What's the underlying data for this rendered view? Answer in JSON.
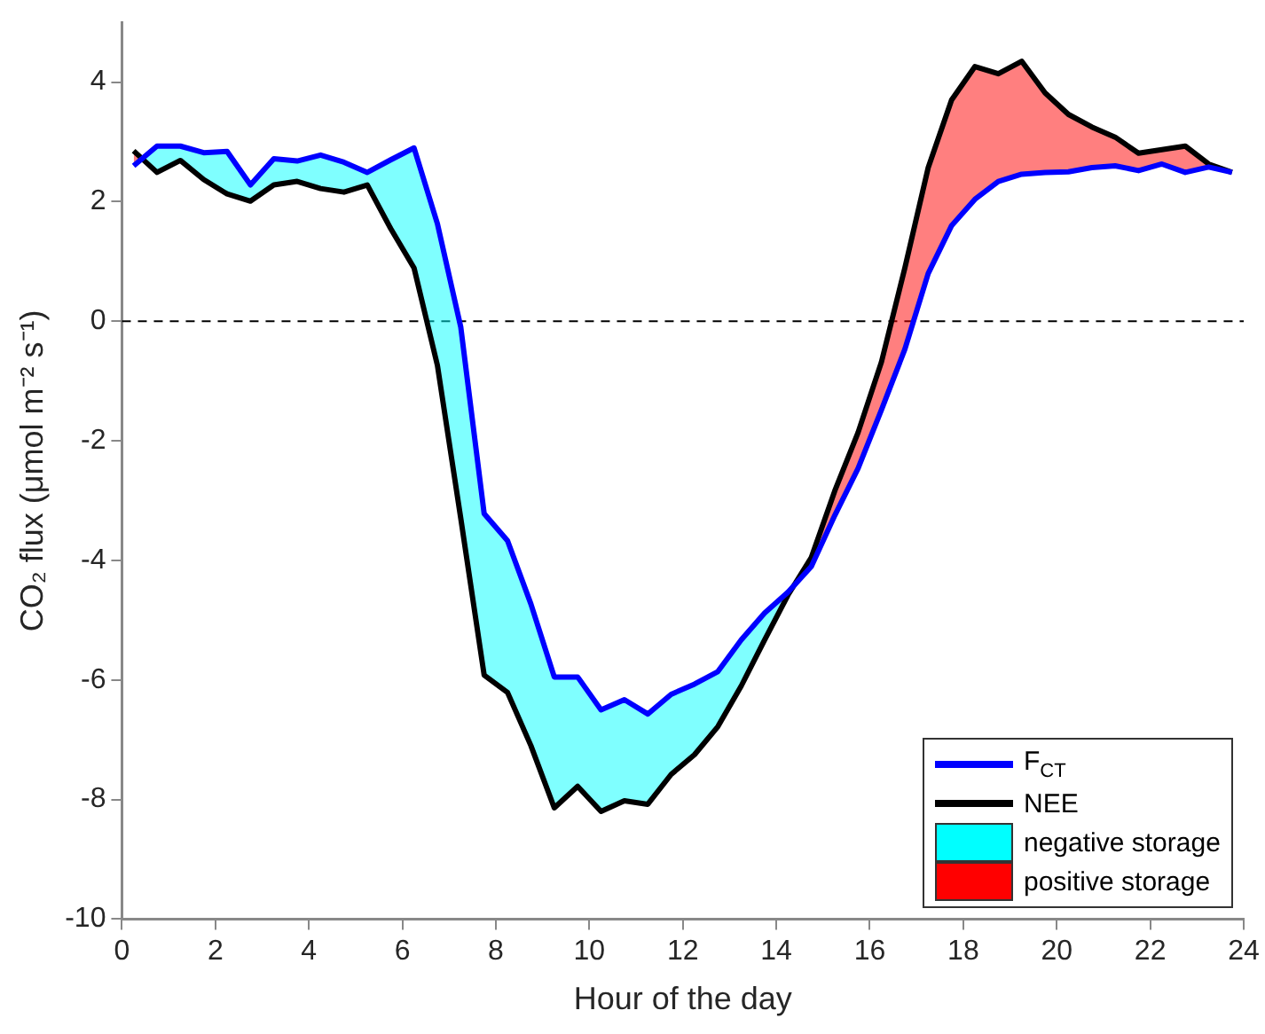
{
  "chart_data": {
    "type": "line",
    "xlabel": "Hour of the day",
    "ylabel": "CO₂ flux (μmol m⁻² s⁻¹)",
    "x": [
      0.25,
      0.75,
      1.25,
      1.75,
      2.25,
      2.75,
      3.25,
      3.75,
      4.25,
      4.75,
      5.25,
      5.75,
      6.25,
      6.75,
      7.25,
      7.75,
      8.25,
      8.75,
      9.25,
      9.75,
      10.25,
      10.75,
      11.25,
      11.75,
      12.25,
      12.75,
      13.25,
      13.75,
      14.25,
      14.75,
      15.25,
      15.75,
      16.25,
      16.75,
      17.25,
      17.75,
      18.25,
      18.75,
      19.25,
      19.75,
      20.25,
      20.75,
      21.25,
      21.75,
      22.25,
      22.75,
      23.25,
      23.75
    ],
    "series": [
      {
        "name": "F$_{CT}$",
        "color": "#0000ff",
        "values": [
          2.6,
          2.93,
          2.93,
          2.82,
          2.84,
          2.28,
          2.72,
          2.68,
          2.78,
          2.66,
          2.49,
          2.7,
          2.9,
          1.63,
          -0.1,
          -3.22,
          -3.67,
          -4.73,
          -5.95,
          -5.95,
          -6.5,
          -6.33,
          -6.57,
          -6.24,
          -6.07,
          -5.86,
          -5.33,
          -4.88,
          -4.53,
          -4.1,
          -3.25,
          -2.46,
          -1.48,
          -0.47,
          0.8,
          1.6,
          2.04,
          2.34,
          2.46,
          2.49,
          2.5,
          2.57,
          2.6,
          2.52,
          2.63,
          2.49,
          2.58,
          2.49
        ]
      },
      {
        "name": "NEE",
        "color": "#000000",
        "values": [
          2.85,
          2.49,
          2.69,
          2.37,
          2.13,
          2.01,
          2.28,
          2.34,
          2.22,
          2.16,
          2.28,
          1.55,
          0.89,
          -0.74,
          -3.3,
          -5.92,
          -6.21,
          -7.1,
          -8.14,
          -7.78,
          -8.2,
          -8.02,
          -8.08,
          -7.58,
          -7.25,
          -6.78,
          -6.1,
          -5.33,
          -4.58,
          -3.95,
          -2.84,
          -1.86,
          -0.68,
          0.89,
          2.57,
          3.7,
          4.26,
          4.14,
          4.35,
          3.82,
          3.46,
          3.25,
          3.08,
          2.81,
          2.87,
          2.93,
          2.63,
          2.49
        ]
      },
      {
        "name": "negative storage",
        "type": "area",
        "color": "#00ffff",
        "values": [
          null,
          null,
          null,
          null,
          null,
          null,
          null,
          null,
          null,
          null,
          null,
          null,
          null,
          null,
          null,
          null,
          null,
          null,
          null,
          null,
          null,
          null,
          null,
          null,
          null,
          null,
          null,
          null,
          null,
          null,
          null,
          null,
          null,
          null,
          null,
          null,
          null,
          null,
          null,
          null,
          null,
          null,
          null,
          null,
          null,
          null,
          null,
          null
        ],
        "lower": [
          2.85,
          2.49,
          2.69,
          2.37,
          2.13,
          2.01,
          2.28,
          2.34,
          2.22,
          2.16,
          2.28,
          1.55,
          0.89,
          -0.74,
          -3.3,
          -5.92,
          -6.21,
          -7.1,
          -8.14,
          -7.78,
          -8.2,
          -8.02,
          -8.08,
          -7.58,
          -7.25,
          -6.78,
          -6.1,
          -5.33,
          -4.58,
          -3.95,
          -2.84,
          -1.86,
          -0.68,
          0.89,
          2.57,
          3.7,
          4.26,
          4.14,
          4.35,
          3.82,
          3.46,
          3.25,
          3.08,
          2.81,
          2.87,
          2.93,
          2.63,
          2.49
        ],
        "upper": [
          2.6,
          2.93,
          2.93,
          2.82,
          2.84,
          2.28,
          2.72,
          2.68,
          2.78,
          2.66,
          2.49,
          2.7,
          2.9,
          1.63,
          -0.1,
          -3.22,
          -3.67,
          -4.73,
          -5.95,
          -5.95,
          -6.5,
          -6.33,
          -6.57,
          -6.24,
          -6.07,
          -5.86,
          -5.33,
          -4.88,
          -4.53,
          -4.1,
          -3.25,
          -2.46,
          -1.48,
          -0.47,
          0.8,
          1.6,
          2.04,
          2.34,
          2.46,
          2.49,
          2.5,
          2.57,
          2.6,
          2.52,
          2.63,
          2.49,
          2.58,
          2.49
        ]
      },
      {
        "name": "positive storage",
        "type": "area",
        "color": "#ff0000",
        "values": [
          null,
          null,
          null,
          null,
          null,
          null,
          null,
          null,
          null,
          null,
          null,
          null,
          null,
          null,
          null,
          null,
          null,
          null,
          null,
          null,
          null,
          null,
          null,
          null,
          null,
          null,
          null,
          null,
          null,
          null,
          null,
          null,
          null,
          null,
          null,
          null,
          null,
          null,
          null,
          null,
          null,
          null,
          null,
          null,
          null,
          null,
          null,
          null
        ],
        "lower": [
          2.6,
          2.93,
          null,
          null,
          null,
          null,
          null,
          null,
          null,
          null,
          null,
          null,
          null,
          null,
          null,
          null,
          null,
          null,
          null,
          null,
          null,
          null,
          null,
          null,
          null,
          null,
          null,
          null,
          -4.53,
          -4.1,
          -3.25,
          -2.46,
          -1.48,
          -0.47,
          0.8,
          1.6,
          2.04,
          2.34,
          2.46,
          2.49,
          2.5,
          2.57,
          2.6,
          2.52,
          2.63,
          2.49,
          2.58,
          2.49
        ],
        "upper": [
          2.85,
          2.49,
          null,
          null,
          null,
          null,
          null,
          null,
          null,
          null,
          null,
          null,
          null,
          null,
          null,
          null,
          null,
          null,
          null,
          null,
          null,
          null,
          null,
          null,
          null,
          null,
          null,
          null,
          -4.58,
          -3.95,
          -2.84,
          -1.86,
          -0.68,
          0.89,
          2.57,
          3.7,
          4.26,
          4.14,
          4.35,
          3.82,
          3.46,
          3.25,
          3.08,
          2.81,
          2.87,
          2.93,
          2.63,
          2.49
        ]
      }
    ],
    "xlim": [
      0,
      24
    ],
    "xticks": [
      0,
      2,
      4,
      6,
      8,
      10,
      12,
      14,
      16,
      18,
      20,
      22,
      24
    ],
    "ylim": [
      -10,
      5
    ],
    "yticks": [
      -10,
      -8,
      -6,
      -4,
      -2,
      0,
      2,
      4
    ],
    "ref_lines": [
      {
        "axis": "y",
        "value": 0,
        "color": "#000000",
        "line_style": "dashed"
      }
    ],
    "grid": false,
    "legend": "bottom right",
    "marker": "none",
    "line_style": "solid"
  }
}
